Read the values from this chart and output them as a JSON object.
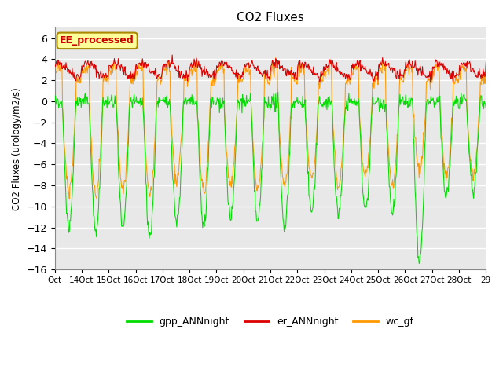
{
  "title": "CO2 Fluxes",
  "ylabel": "CO2 Fluxes (urology/m2/s)",
  "ylim": [
    -16,
    7
  ],
  "xlim": [
    0,
    16
  ],
  "background_color": "#ffffff",
  "plot_bg_color": "#e8e8e8",
  "grid_color": "#ffffff",
  "colors": {
    "gpp": "#00dd00",
    "er": "#dd0000",
    "wc": "#ff9900"
  },
  "legend_labels": [
    "gpp_ANNnight",
    "er_ANNnight",
    "wc_gf"
  ],
  "xtick_labels": [
    "Oct",
    "14Oct",
    "15Oct",
    "16Oct",
    "17Oct",
    "18Oct",
    "19Oct",
    "20Oct",
    "21Oct",
    "22Oct",
    "23Oct",
    "24Oct",
    "25Oct",
    "26Oct",
    "27Oct",
    "28Oct",
    "29"
  ],
  "ytick_values": [
    -16,
    -14,
    -12,
    -10,
    -8,
    -6,
    -4,
    -2,
    0,
    2,
    4,
    6
  ],
  "inset_label": "EE_processed",
  "inset_bg": "#ffff99",
  "inset_border": "#aa8800"
}
